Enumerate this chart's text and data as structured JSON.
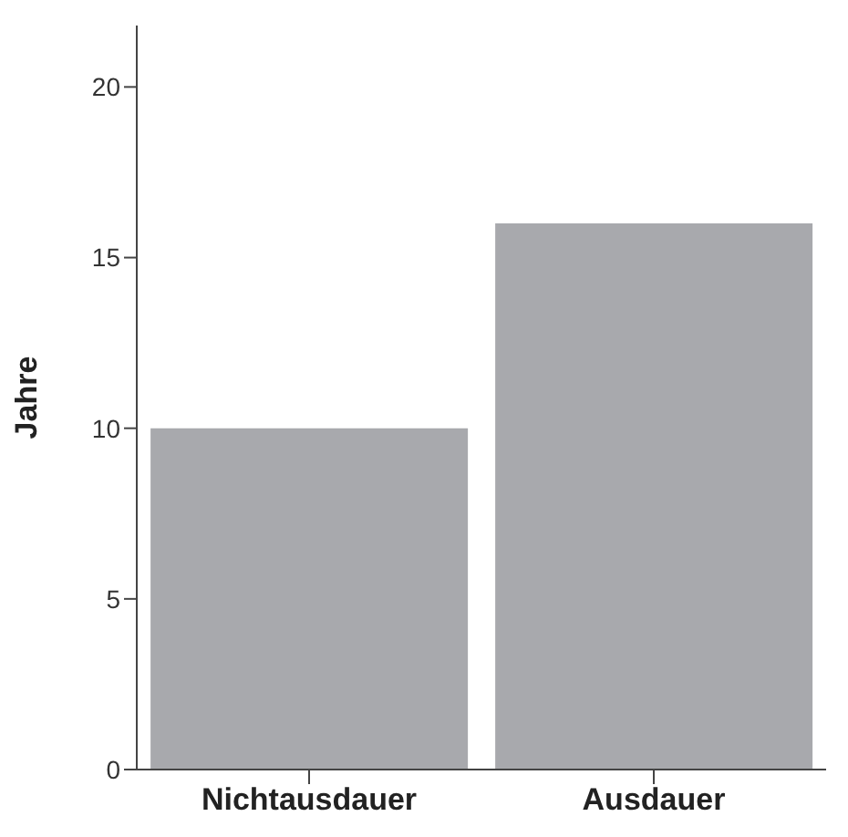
{
  "chart_data": {
    "type": "bar",
    "ylabel": "Jahre",
    "categories": [
      "Nichtausdauer",
      "Ausdauer"
    ],
    "values": [
      10,
      16
    ],
    "color": "#a8a9ad",
    "ylim": [
      0,
      21.8
    ],
    "yticks": [
      0,
      5,
      10,
      15,
      20
    ],
    "grid": false,
    "legend": false
  }
}
